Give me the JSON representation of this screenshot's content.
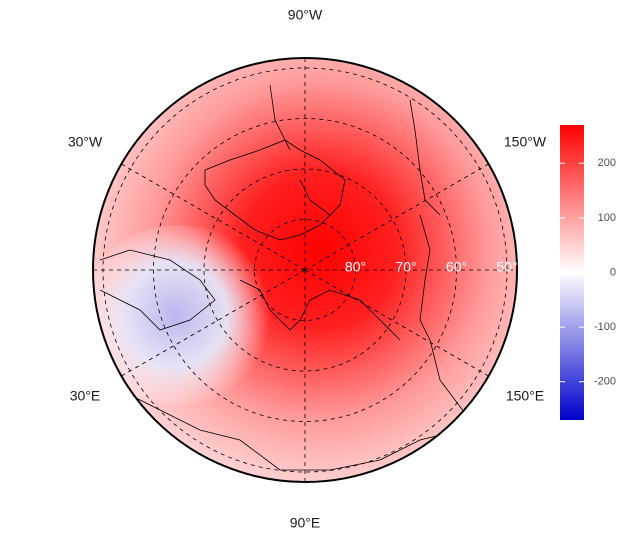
{
  "map": {
    "meridian_labels": [
      {
        "value": -90,
        "label": "90°W"
      },
      {
        "value": -30,
        "label": "30°W"
      },
      {
        "value": -150,
        "label": "150°W"
      },
      {
        "value": 30,
        "label": "30°E"
      },
      {
        "value": 150,
        "label": "150°E"
      },
      {
        "value": 90,
        "label": "90°E"
      }
    ],
    "latitude_labels": [
      {
        "value": 80,
        "label": "80°"
      },
      {
        "value": 70,
        "label": "70°"
      },
      {
        "value": 60,
        "label": "60°"
      },
      {
        "value": 50,
        "label": "50°"
      }
    ],
    "colorbar": {
      "lim": [
        -270,
        270
      ],
      "ticks": [
        -200,
        -100,
        0,
        100,
        200
      ],
      "colors": [
        "#0000cc",
        "#ffffff",
        "#ff0000"
      ]
    }
  }
}
